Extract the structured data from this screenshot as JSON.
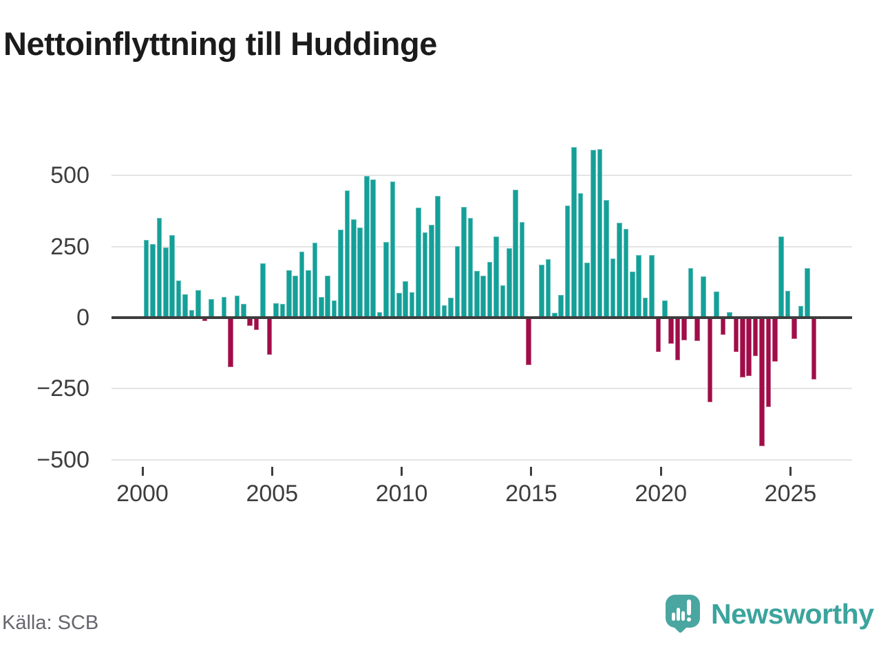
{
  "header": {
    "title": "Nettoinflyttning till Huddinge"
  },
  "footer": {
    "source": "Källa: SCB",
    "brand": "Newsworthy"
  },
  "colors": {
    "positive_bar": "#14a099",
    "negative_bar": "#a00d48",
    "brand_teal": "#4aa6a0",
    "grid": "#e4e4e4",
    "axis": "#3d3d3d",
    "title_text": "#1b1b1b",
    "source_text": "#65656d"
  },
  "chart_data": {
    "type": "bar",
    "title": "Nettoinflyttning till Huddinge",
    "xlabel": "",
    "ylabel": "",
    "frequency": "quarterly",
    "period_start": "2000Q1",
    "period_end": "2025Q4",
    "ylim": [
      -500,
      600
    ],
    "grid": true,
    "legend": "none",
    "y_ticks": [
      {
        "value": 500,
        "label": "500"
      },
      {
        "value": 250,
        "label": "250"
      },
      {
        "value": 0,
        "label": "0"
      },
      {
        "value": -250,
        "label": "−250"
      },
      {
        "value": -500,
        "label": "−500"
      }
    ],
    "x_ticks": [
      {
        "year": 2000,
        "label": "2000"
      },
      {
        "year": 2005,
        "label": "2005"
      },
      {
        "year": 2010,
        "label": "2010"
      },
      {
        "year": 2015,
        "label": "2015"
      },
      {
        "year": 2020,
        "label": "2020"
      },
      {
        "year": 2025,
        "label": "2025"
      }
    ],
    "values": [
      274,
      259,
      351,
      247,
      289,
      131,
      81,
      26,
      97,
      -12,
      65,
      0,
      73,
      -175,
      77,
      48,
      -30,
      -44,
      190,
      -131,
      51,
      48,
      166,
      148,
      233,
      168,
      264,
      72,
      148,
      61,
      310,
      447,
      345,
      316,
      498,
      486,
      20,
      267,
      479,
      87,
      127,
      89,
      386,
      301,
      327,
      427,
      44,
      69,
      252,
      390,
      351,
      164,
      147,
      195,
      286,
      113,
      245,
      449,
      336,
      -167,
      0,
      186,
      205,
      17,
      80,
      393,
      600,
      437,
      193,
      589,
      592,
      413,
      207,
      334,
      311,
      161,
      221,
      71,
      219,
      -121,
      60,
      -93,
      -151,
      -79,
      173,
      -81,
      145,
      -298,
      93,
      -60,
      19,
      -121,
      -210,
      -206,
      -136,
      -452,
      -314,
      -154,
      286,
      94,
      -76,
      40,
      174,
      -218
    ]
  }
}
